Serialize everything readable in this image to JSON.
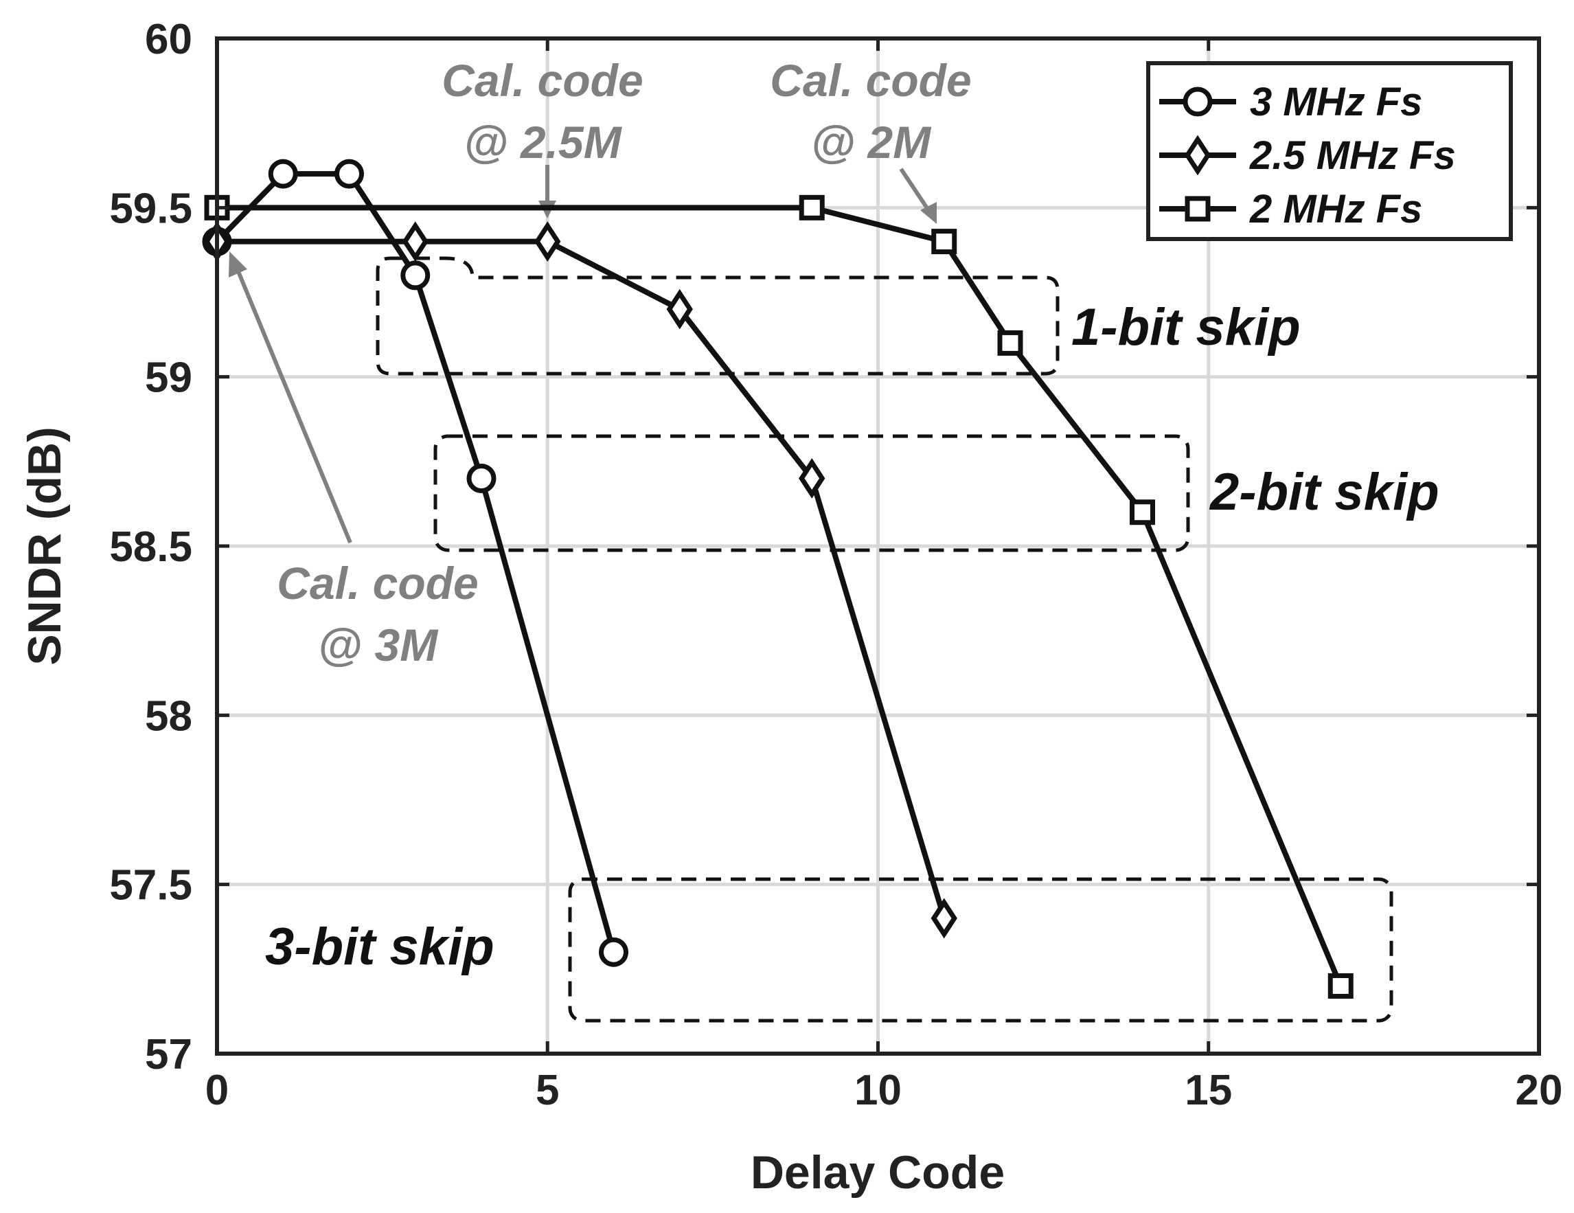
{
  "chart_data": {
    "type": "line",
    "xlabel": "Delay Code",
    "ylabel": "SNDR (dB)",
    "xlim": [
      0,
      20
    ],
    "ylim": [
      57,
      60
    ],
    "xticks": [
      "0",
      "5",
      "10",
      "15",
      "20"
    ],
    "yticks": [
      "57",
      "57.5",
      "58",
      "58.5",
      "59",
      "59.5",
      "60"
    ],
    "grid": true,
    "legend_position": "top-right",
    "series": [
      {
        "name": "3 MHz Fs",
        "marker": "circle",
        "x": [
          0,
          1,
          2,
          3,
          4,
          6
        ],
        "y": [
          59.4,
          59.6,
          59.6,
          59.3,
          58.7,
          57.3
        ]
      },
      {
        "name": "2.5 MHz Fs",
        "marker": "diamond",
        "x": [
          0,
          3,
          5,
          7,
          9,
          11
        ],
        "y": [
          59.4,
          59.4,
          59.4,
          59.2,
          58.7,
          57.4
        ]
      },
      {
        "name": "2 MHz Fs",
        "marker": "square",
        "x": [
          0,
          9,
          11,
          12,
          14,
          17
        ],
        "y": [
          59.5,
          59.5,
          59.4,
          59.1,
          58.6,
          57.2
        ]
      }
    ],
    "annotations": {
      "cal_3m": [
        "Cal. code",
        "@ 3M"
      ],
      "cal_25m": [
        "Cal. code",
        "@ 2.5M"
      ],
      "cal_2m": [
        "Cal. code",
        "@ 2M"
      ],
      "skip_1": "1-bit skip",
      "skip_2": "2-bit skip",
      "skip_3": "3-bit skip"
    },
    "colors": {
      "series": "#111111",
      "grid": "#d9d9d9",
      "annotation_gray": "#808080"
    }
  }
}
